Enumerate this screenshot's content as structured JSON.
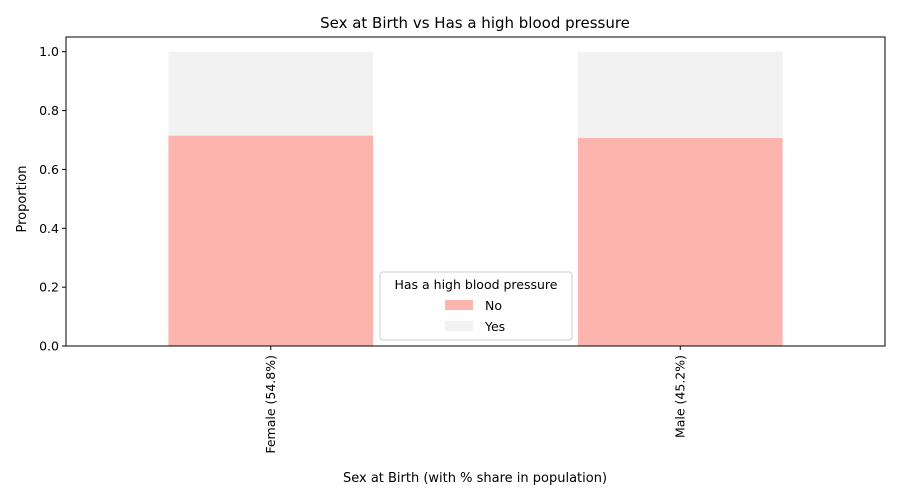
{
  "chart_data": {
    "type": "bar",
    "stacked": true,
    "title": "Sex at Birth vs Has a high blood pressure",
    "xlabel": "Sex at Birth (with % share in population)",
    "ylabel": "Proportion",
    "ylim": [
      0,
      1.05
    ],
    "yticks": [
      "0.0",
      "0.2",
      "0.4",
      "0.6",
      "0.8",
      "1.0"
    ],
    "categories": [
      "Female (54.8%)",
      "Male (45.2%)"
    ],
    "series": [
      {
        "name": "No",
        "values": [
          0.715,
          0.707
        ],
        "color": "#fbb4ae"
      },
      {
        "name": "Yes",
        "values": [
          0.285,
          0.293
        ],
        "color": "#f2f2f2"
      }
    ],
    "legend": {
      "title": "Has a high blood pressure",
      "placement": "lower-center"
    }
  }
}
